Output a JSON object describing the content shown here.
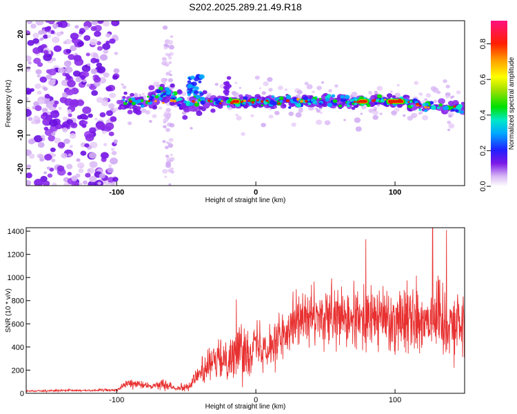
{
  "title": "S202.2025.289.21.49.R18",
  "chart_data": [
    {
      "type": "heatmap",
      "name": "spectrogram",
      "xlabel": "Height of straight line (km)",
      "ylabel": "Frequency (Hz)",
      "xlim": [
        -165,
        150
      ],
      "ylim": [
        -25,
        24
      ],
      "xticks": [
        -100,
        0,
        100
      ],
      "xtick_labels": [
        "-100",
        "0",
        "100"
      ],
      "yticks": [
        20,
        10,
        0,
        -10,
        -20
      ],
      "ytick_labels": [
        "20",
        "10",
        "0",
        "-10",
        "-20"
      ],
      "colorbar": {
        "label": "Normalized spectral amplitude",
        "range": [
          0,
          0.93
        ],
        "ticks": [
          0.0,
          0.2,
          0.4,
          0.6,
          0.8
        ],
        "tick_labels": [
          "0.0",
          "0.2",
          "0.4",
          "0.6",
          "0.8"
        ]
      },
      "features": {
        "noise_region_x": [
          -165,
          -100
        ],
        "signal_start_x": -100,
        "strong_tone_segments_x": [
          [
            -17,
            -12
          ],
          [
            74,
            80
          ],
          [
            95,
            106
          ]
        ],
        "tone_center_hz": 0
      }
    },
    {
      "type": "line",
      "name": "snr",
      "xlabel": "Height of straight line (km)",
      "ylabel": "SNR (10 * v/v)",
      "xlim": [
        -165,
        150
      ],
      "ylim": [
        0,
        1430
      ],
      "xticks": [
        -100,
        0,
        100
      ],
      "xtick_labels": [
        "-100",
        "0",
        "100"
      ],
      "yticks": [
        0,
        200,
        400,
        600,
        800,
        1000,
        1200,
        1400
      ],
      "ytick_labels": [
        "0",
        "200",
        "400",
        "600",
        "800",
        "1000",
        "1200",
        "1400"
      ],
      "color": "#e83030",
      "envelope": {
        "x": [
          -165,
          -100,
          -92,
          -85,
          -75,
          -65,
          -58,
          -48,
          -40,
          -30,
          -20,
          -10,
          0,
          10,
          20,
          26,
          35,
          50,
          70,
          90,
          110,
          130,
          150
        ],
        "mean": [
          20,
          28,
          85,
          80,
          60,
          85,
          45,
          60,
          180,
          260,
          320,
          360,
          420,
          430,
          480,
          660,
          640,
          640,
          630,
          650,
          660,
          650,
          600
        ],
        "spread": [
          8,
          10,
          40,
          30,
          20,
          45,
          15,
          40,
          90,
          150,
          190,
          210,
          180,
          200,
          220,
          200,
          220,
          240,
          250,
          260,
          280,
          300,
          260
        ]
      },
      "peaks": [
        {
          "x": 79,
          "y": 1330
        },
        {
          "x": 127,
          "y": 1430
        },
        {
          "x": 137,
          "y": 1410
        },
        {
          "x": -14,
          "y": 810
        }
      ]
    }
  ]
}
